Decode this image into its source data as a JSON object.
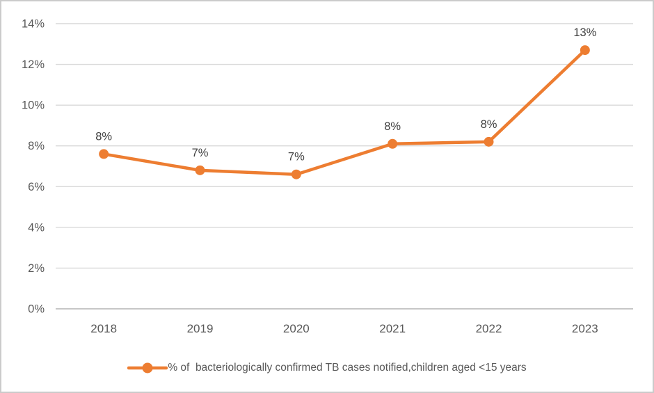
{
  "chart_data": {
    "type": "line",
    "title": "",
    "categories": [
      "2018",
      "2019",
      "2020",
      "2021",
      "2022",
      "2023"
    ],
    "series": [
      {
        "name": "% of  bacteriologically confirmed TB cases notified,children aged <15 years",
        "values": [
          7.6,
          6.8,
          6.6,
          8.1,
          8.2,
          12.7
        ],
        "point_labels": [
          "8%",
          "7%",
          "7%",
          "8%",
          "8%",
          "13%"
        ],
        "color": "#ED7D31"
      }
    ],
    "xlabel": "",
    "ylabel": "",
    "ylim": [
      0,
      14
    ],
    "ytick_step": 2,
    "ytick_labels": [
      "0%",
      "2%",
      "4%",
      "6%",
      "8%",
      "10%",
      "12%",
      "14%"
    ],
    "grid": true,
    "legend_position": "bottom"
  },
  "legend": {
    "label": "% of  bacteriologically confirmed TB cases notified,children aged <15 years"
  },
  "colors": {
    "line": "#ED7D31",
    "gridline": "#D9D9D9",
    "axis_line": "#BFBFBF",
    "tick_label": "#595959",
    "data_label": "#404040",
    "border": "#CBCBCB",
    "background": "#FFFFFF"
  }
}
